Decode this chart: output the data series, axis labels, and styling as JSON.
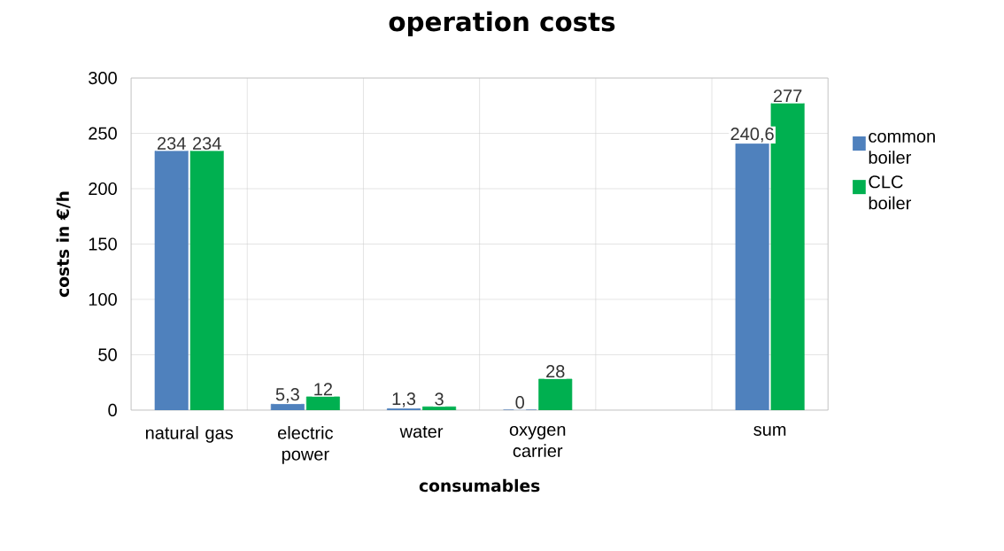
{
  "chart_data": {
    "type": "bar",
    "title": "operation costs",
    "xlabel": "consumables",
    "ylabel": "costs in €/h",
    "categories": [
      "natural gas",
      "electric power",
      "water",
      "oxygen carrier",
      null,
      "sum"
    ],
    "series": [
      {
        "name": "common boiler",
        "color": "#4f81bd",
        "values": [
          234,
          5.3,
          1.3,
          0,
          null,
          240.6
        ],
        "value_labels": [
          "234",
          "5,3",
          "1,3",
          "0",
          null,
          "240,6"
        ]
      },
      {
        "name": "CLC boiler",
        "color": "#00b050",
        "values": [
          234,
          12,
          3,
          28,
          null,
          277
        ],
        "value_labels": [
          "234",
          "12",
          "3",
          "28",
          null,
          "277"
        ]
      }
    ],
    "ylim": [
      0,
      300
    ],
    "yticks": [
      0,
      50,
      100,
      150,
      200,
      250,
      300
    ],
    "grid": true,
    "legend": "right"
  }
}
